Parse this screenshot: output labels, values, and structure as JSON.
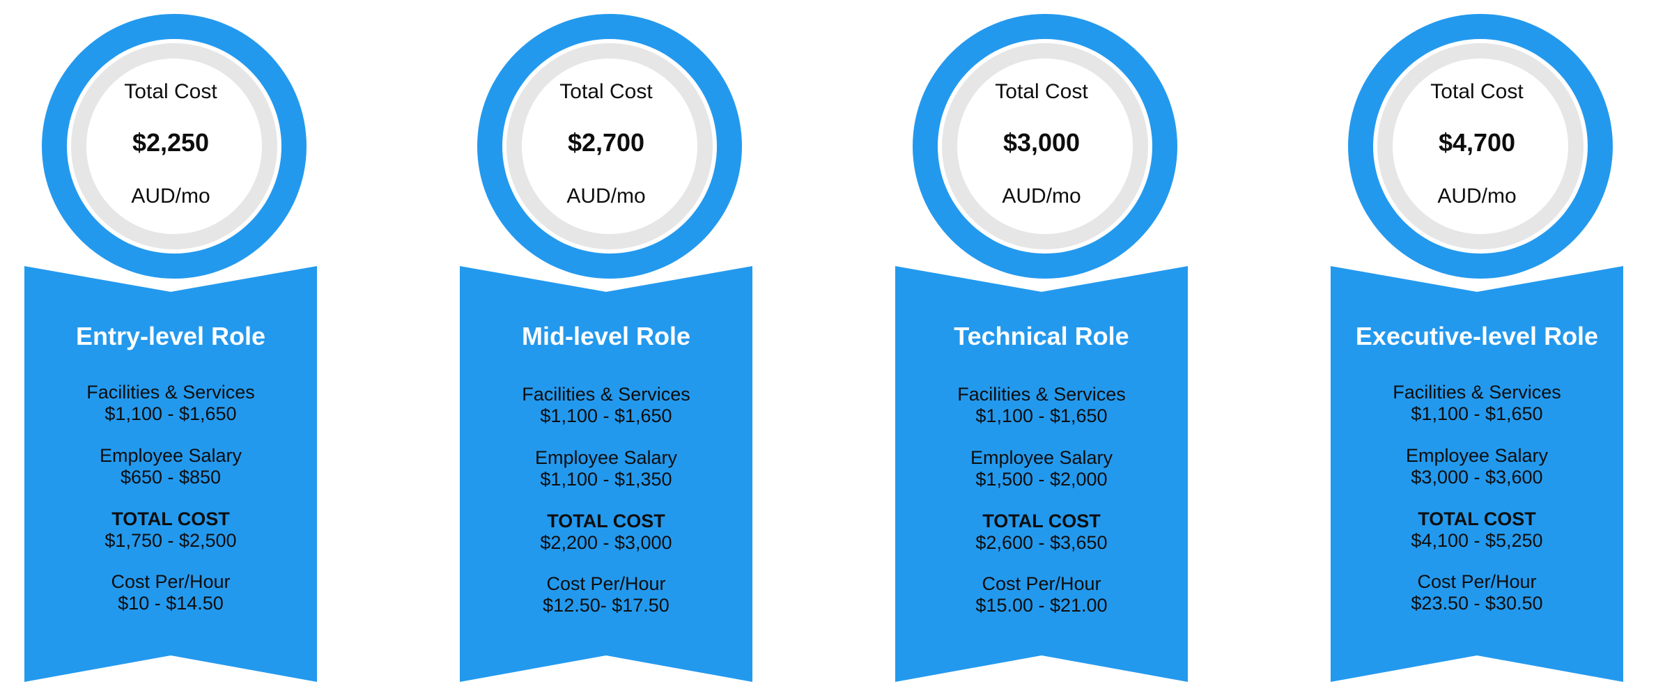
{
  "cards": [
    {
      "cost_label": "Total Cost",
      "cost_amount": "$2,250",
      "cost_unit": "AUD/mo",
      "title": "Entry-level Role",
      "rows": [
        {
          "label": "Facilities & Services",
          "value": "$1,100 - $1,650"
        },
        {
          "label": "Employee Salary",
          "value": "$650 - $850"
        },
        {
          "label": "TOTAL COST",
          "value": "$1,750 - $2,500"
        },
        {
          "label": "Cost Per/Hour",
          "value": "$10 - $14.50"
        }
      ]
    },
    {
      "cost_label": "Total Cost",
      "cost_amount": "$2,700",
      "cost_unit": "AUD/mo",
      "title": "Mid-level Role",
      "rows": [
        {
          "label": "Facilities & Services",
          "value": "$1,100 - $1,650"
        },
        {
          "label": "Employee Salary",
          "value": "$1,100 - $1,350"
        },
        {
          "label": "TOTAL COST",
          "value": "$2,200 - $3,000"
        },
        {
          "label": "Cost Per/Hour",
          "value": "$12.50- $17.50"
        }
      ]
    },
    {
      "cost_label": "Total Cost",
      "cost_amount": "$3,000",
      "cost_unit": "AUD/mo",
      "title": "Technical Role",
      "rows": [
        {
          "label": "Facilities & Services",
          "value": "$1,100 - $1,650"
        },
        {
          "label": "Employee Salary",
          "value": "$1,500 - $2,000"
        },
        {
          "label": "TOTAL COST",
          "value": "$2,600 - $3,650"
        },
        {
          "label": "Cost Per/Hour",
          "value": "$15.00 - $21.00"
        }
      ]
    },
    {
      "cost_label": "Total Cost",
      "cost_amount": "$4,700",
      "cost_unit": "AUD/mo",
      "title": "Executive-level Role",
      "rows": [
        {
          "label": "Facilities & Services",
          "value": "$1,100 - $1,650"
        },
        {
          "label": "Employee Salary",
          "value": "$3,000 - $3,600"
        },
        {
          "label": "TOTAL COST",
          "value": "$4,100 - $5,250"
        },
        {
          "label": "Cost Per/Hour",
          "value": "$23.50 - $30.50"
        }
      ]
    }
  ],
  "colors": {
    "accent": "#2399ee",
    "ring_inner": "#e6e6e6",
    "text": "#0d0d0d",
    "title_text": "#ffffff"
  }
}
